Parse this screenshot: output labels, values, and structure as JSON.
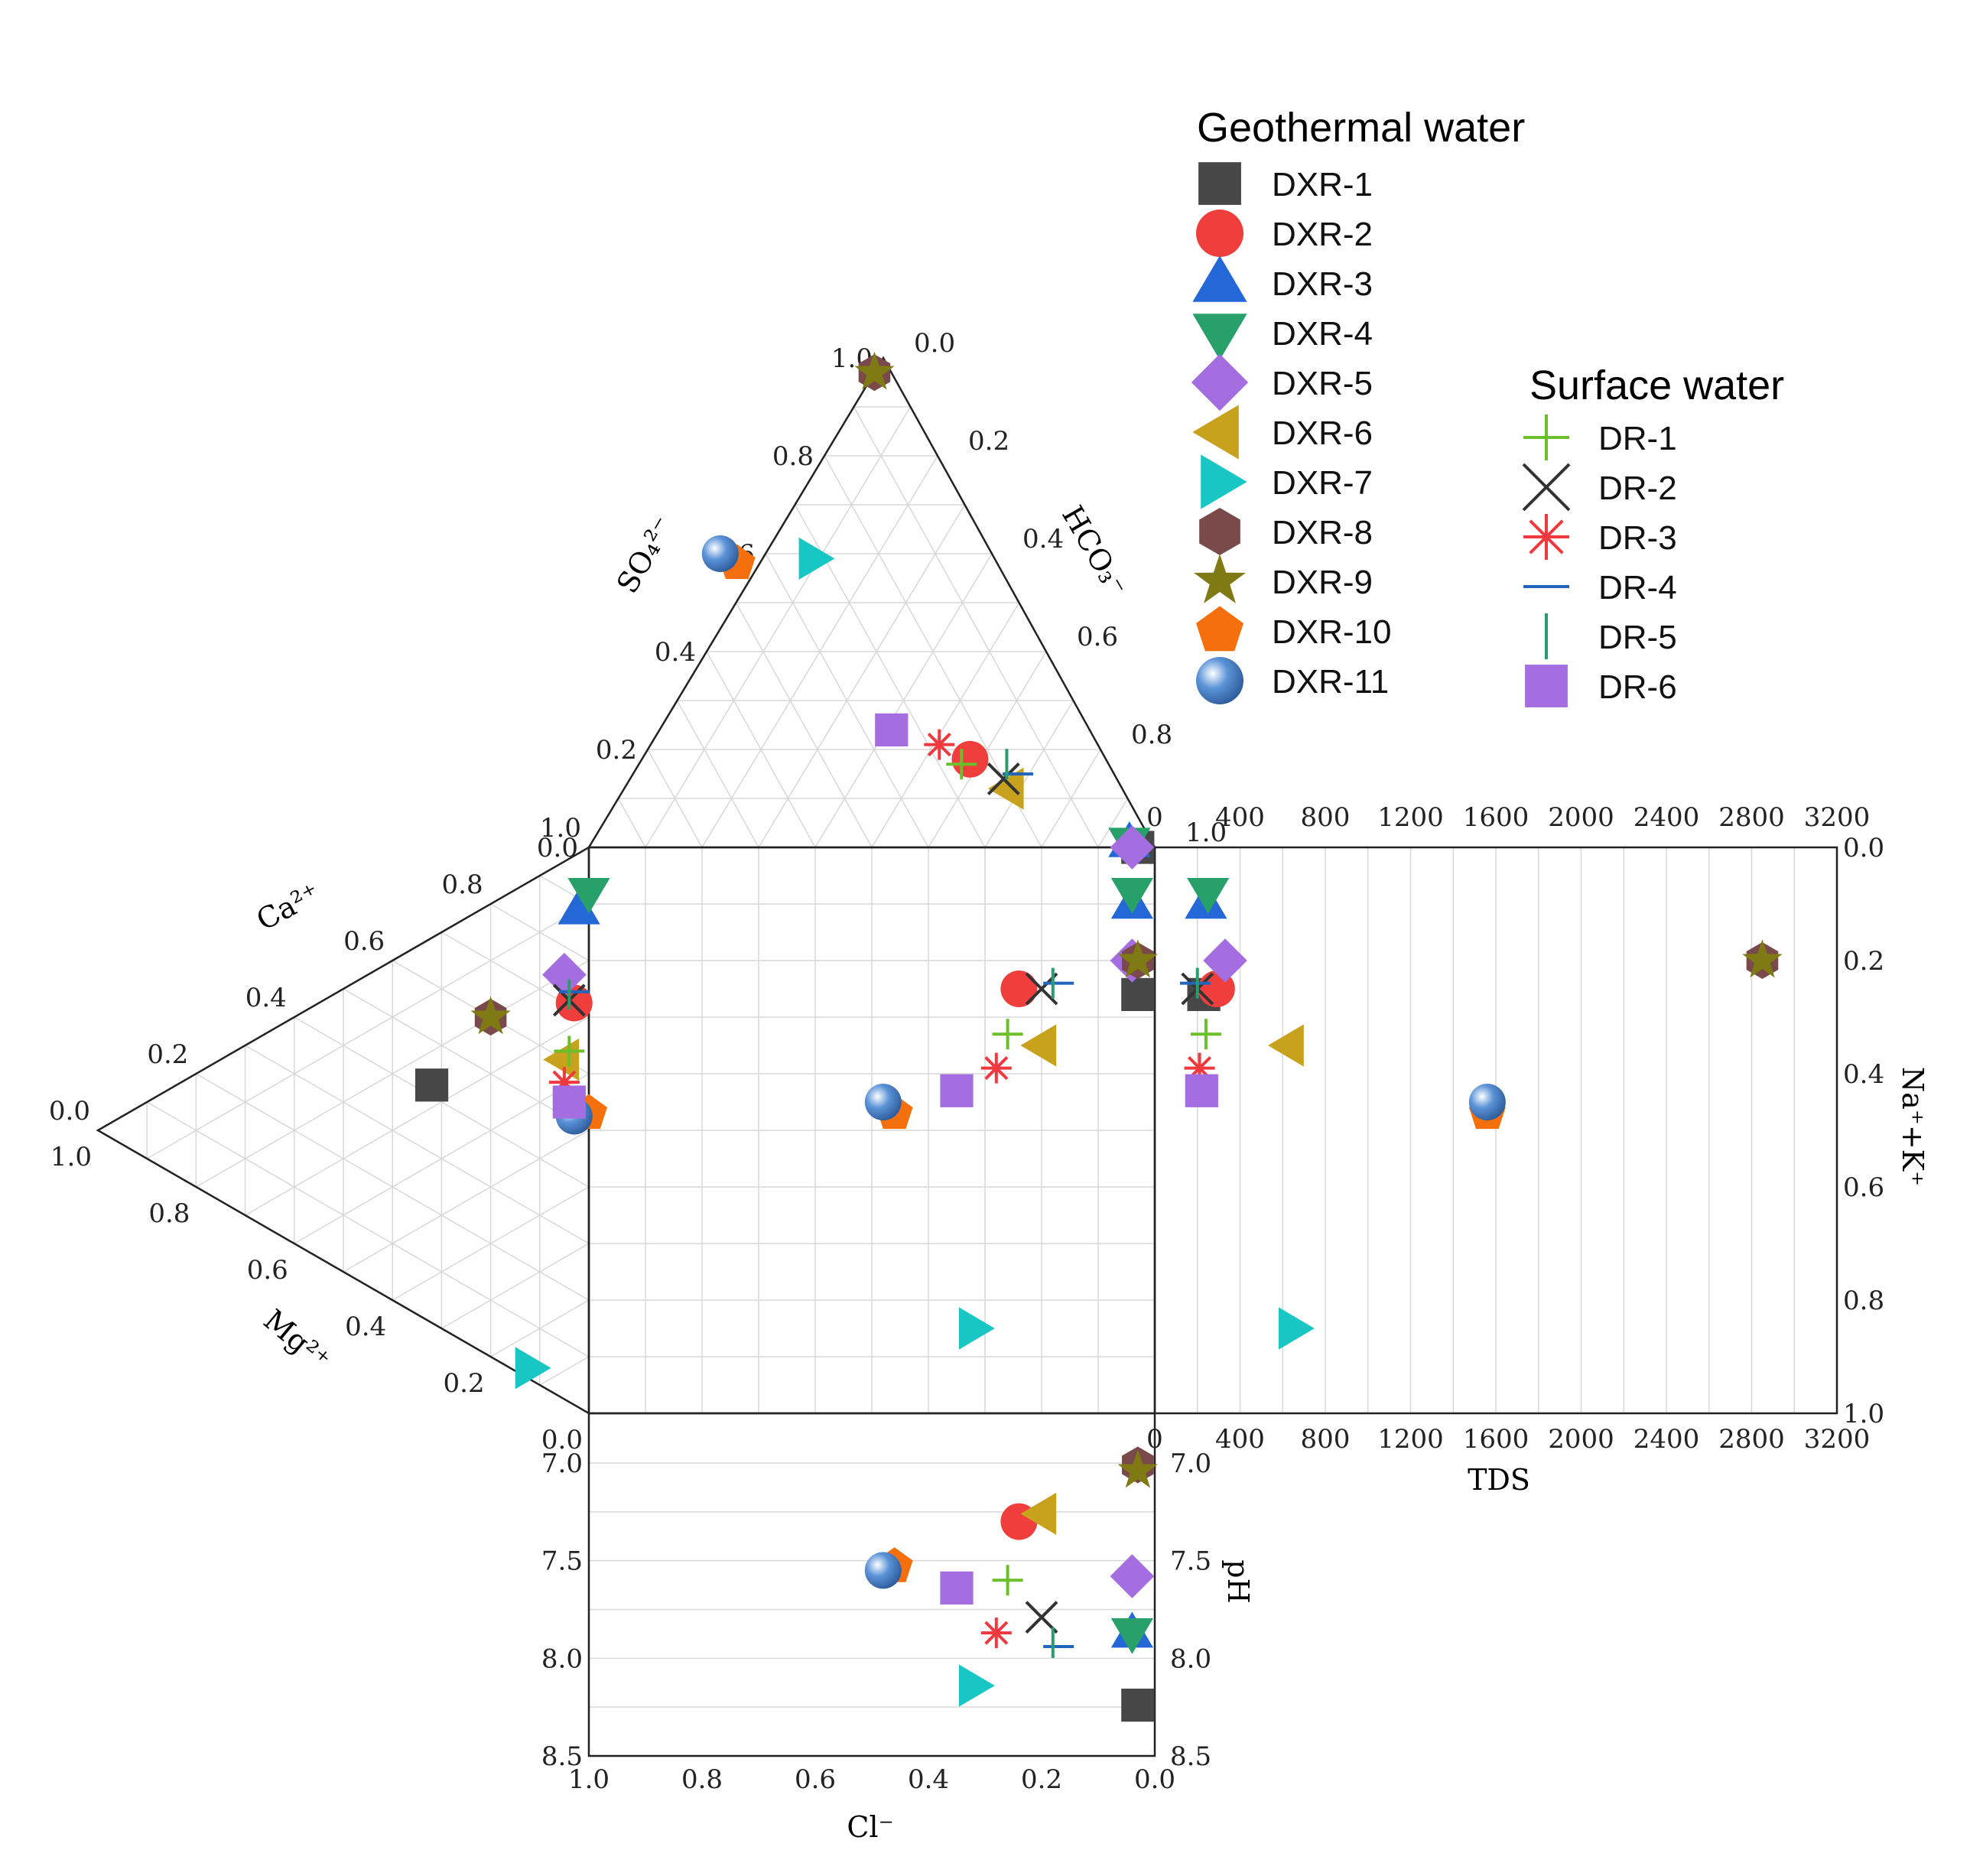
{
  "chart_data": {
    "type": "scatter",
    "subtype": "durov-diagram",
    "legend": {
      "geothermal_title": "Geothermal water",
      "surface_title": "Surface water",
      "placement": "top-right"
    },
    "labels": {
      "so4": "SO₄²⁻",
      "hco3": "HCO₃⁻",
      "ca": "Ca²⁺",
      "mg": "Mg²⁺",
      "cl": "Cl⁻",
      "nak": "Na⁺+K⁺",
      "tds": "TDS",
      "ph": "pH"
    },
    "ticks": {
      "frac": [
        "0.0",
        "0.2",
        "0.4",
        "0.6",
        "0.8",
        "1.0"
      ],
      "tds": [
        "0",
        "400",
        "800",
        "1200",
        "1600",
        "2000",
        "2400",
        "2800",
        "3200"
      ],
      "ph": [
        "7.0",
        "7.5",
        "8.0",
        "8.5"
      ]
    },
    "axes": {
      "tds_range": [
        0,
        3200
      ],
      "ph_range": [
        7.0,
        8.5
      ],
      "fraction_range": [
        0,
        1
      ],
      "grid": true
    },
    "series": [
      {
        "name": "DXR-1",
        "group": "Geothermal water",
        "marker": "square",
        "color": "#474747",
        "so4": 0.0,
        "cl": 0.03,
        "hco3": 0.97,
        "ca": 0.42,
        "mg": 0.32,
        "nak": 0.26,
        "tds": 230,
        "ph": 8.24
      },
      {
        "name": "DXR-2",
        "group": "Geothermal water",
        "marker": "circle",
        "color": "#ef3e3b",
        "so4": 0.18,
        "cl": 0.24,
        "hco3": 0.58,
        "ca": 0.71,
        "mg": 0.03,
        "nak": 0.25,
        "tds": 290,
        "ph": 7.3
      },
      {
        "name": "DXR-3",
        "group": "Geothermal water",
        "marker": "triangle-up",
        "color": "#2468d8",
        "so4": 0.01,
        "cl": 0.04,
        "hco3": 0.95,
        "ca": 0.88,
        "mg": 0.02,
        "nak": 0.1,
        "tds": 240,
        "ph": 7.87
      },
      {
        "name": "DXR-4",
        "group": "Geothermal water",
        "marker": "triangle-down",
        "color": "#27a06a",
        "so4": 0.01,
        "cl": 0.04,
        "hco3": 0.95,
        "ca": 0.92,
        "mg": 0.0,
        "nak": 0.08,
        "tds": 250,
        "ph": 7.87
      },
      {
        "name": "DXR-5",
        "group": "Geothermal water",
        "marker": "diamond",
        "color": "#a56ee0",
        "so4": 0.0,
        "cl": 0.04,
        "hco3": 0.96,
        "ca": 0.75,
        "mg": 0.05,
        "nak": 0.2,
        "tds": 330,
        "ph": 7.58
      },
      {
        "name": "DXR-6",
        "group": "Geothermal water",
        "marker": "triangle-left",
        "color": "#c9a21d",
        "so4": 0.12,
        "cl": 0.2,
        "hco3": 0.68,
        "ca": 0.6,
        "mg": 0.05,
        "nak": 0.35,
        "tds": 630,
        "ph": 7.26
      },
      {
        "name": "DXR-7",
        "group": "Geothermal water",
        "marker": "triangle-right",
        "color": "#18c6c4",
        "so4": 0.59,
        "cl": 0.32,
        "hco3": 0.09,
        "ca": 0.02,
        "mg": 0.12,
        "nak": 0.85,
        "tds": 650,
        "ph": 8.14
      },
      {
        "name": "DXR-8",
        "group": "Geothermal water",
        "marker": "hexagon",
        "color": "#7a4a4a",
        "so4": 0.97,
        "cl": 0.03,
        "hco3": 0.0,
        "ca": 0.6,
        "mg": 0.2,
        "nak": 0.2,
        "tds": 2850,
        "ph": 7.01
      },
      {
        "name": "DXR-9",
        "group": "Geothermal water",
        "marker": "star",
        "color": "#7f7a13",
        "so4": 0.97,
        "cl": 0.03,
        "hco3": 0.0,
        "ca": 0.6,
        "mg": 0.2,
        "nak": 0.2,
        "tds": 2850,
        "ph": 7.04
      },
      {
        "name": "DXR-10",
        "group": "Geothermal water",
        "marker": "pentagon",
        "color": "#f5700c",
        "so4": 0.58,
        "cl": 0.46,
        "hco3": -0.04,
        "ca": 0.53,
        "mg": 0.0,
        "nak": 0.47,
        "tds": 1560,
        "ph": 7.53
      },
      {
        "name": "DXR-11",
        "group": "Geothermal water",
        "marker": "sphere",
        "color": "#5b93d8",
        "so4": 0.6,
        "cl": 0.48,
        "hco3": -0.08,
        "ca": 0.51,
        "mg": 0.03,
        "nak": 0.45,
        "tds": 1560,
        "ph": 7.55
      },
      {
        "name": "DR-1",
        "group": "Surface water",
        "marker": "plus",
        "color": "#6abf2a",
        "so4": 0.17,
        "cl": 0.26,
        "hco3": 0.57,
        "ca": 0.62,
        "mg": 0.04,
        "nak": 0.33,
        "tds": 240,
        "ph": 7.6
      },
      {
        "name": "DR-2",
        "group": "Surface water",
        "marker": "x",
        "color": "#333333",
        "so4": 0.14,
        "cl": 0.2,
        "hco3": 0.66,
        "ca": 0.71,
        "mg": 0.04,
        "nak": 0.25,
        "tds": 200,
        "ph": 7.79
      },
      {
        "name": "DR-3",
        "group": "Surface water",
        "marker": "asterisk",
        "color": "#f0393f",
        "so4": 0.21,
        "cl": 0.28,
        "hco3": 0.51,
        "ca": 0.56,
        "mg": 0.05,
        "nak": 0.39,
        "tds": 210,
        "ph": 7.87
      },
      {
        "name": "DR-4",
        "group": "Surface water",
        "marker": "hline",
        "color": "#2266bb",
        "so4": 0.15,
        "cl": 0.17,
        "hco3": 0.68,
        "ca": 0.73,
        "mg": 0.03,
        "nak": 0.24,
        "tds": 190,
        "ph": 7.94
      },
      {
        "name": "DR-5",
        "group": "Surface water",
        "marker": "vline",
        "color": "#2a9d6e",
        "so4": 0.17,
        "cl": 0.18,
        "hco3": 0.65,
        "ca": 0.72,
        "mg": 0.04,
        "nak": 0.24,
        "tds": 200,
        "ph": 7.92
      },
      {
        "name": "DR-6",
        "group": "Surface water",
        "marker": "square",
        "color": "#a56ee0",
        "so4": 0.24,
        "cl": 0.35,
        "hco3": 0.41,
        "ca": 0.53,
        "mg": 0.04,
        "nak": 0.43,
        "tds": 220,
        "ph": 7.64
      }
    ]
  }
}
